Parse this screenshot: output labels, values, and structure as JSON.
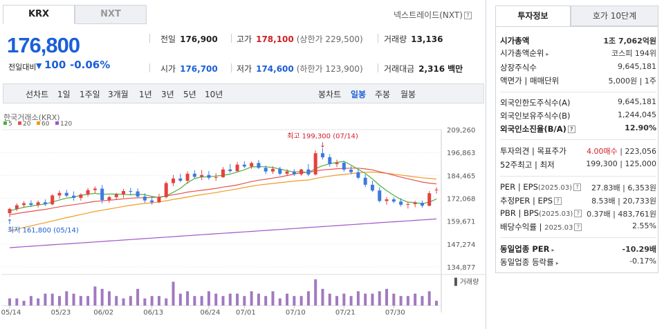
{
  "tabs": {
    "krx": "KRX",
    "nxt": "NXT"
  },
  "nxt_link": "넥스트레이드(NXT)",
  "summary": {
    "price": "176,800",
    "change_label": "전일대비",
    "change": "100",
    "change_pct": "-0.06%"
  },
  "stats": {
    "prev_label": "전일",
    "prev": "176,900",
    "high_label": "고가",
    "high": "178,100",
    "upper_limit": "(상한가 229,500)",
    "volume_label": "거래량",
    "volume": "13,136",
    "open_label": "시가",
    "open": "176,700",
    "low_label": "저가",
    "low": "174,600",
    "lower_limit": "(하한가 123,900)",
    "amount_label": "거래대금",
    "amount": "2,316",
    "amount_unit": "백만"
  },
  "periods": {
    "line_chart": "선차트",
    "d1": "1일",
    "w1": "1주일",
    "m3": "3개월",
    "y1": "1년",
    "y3": "3년",
    "y5": "5년",
    "y10": "10년",
    "candle": "봉차트",
    "daily": "일봉",
    "weekly": "주봉",
    "monthly": "월봉"
  },
  "chart_data": {
    "type": "candlestick",
    "title": "한국거래소(KRX)",
    "legend": [
      "5",
      "20",
      "60",
      "120"
    ],
    "colors": {
      "ma5": "#4caf3d",
      "ma20": "#e4514f",
      "ma60": "#f09a23",
      "ma120": "#9c57c6",
      "up": "#e4423f",
      "down": "#3d79e1",
      "volume": "#a07ac0"
    },
    "y_ticks": [
      "209,260",
      "196,863",
      "184,465",
      "172,068",
      "159,671",
      "147,274",
      "134,877"
    ],
    "ylim": [
      134877,
      209260
    ],
    "x_labels": [
      "05/14",
      "05/23",
      "06/02",
      "06/13",
      "06/24",
      "07/01",
      "07/10",
      "07/21",
      "07/30"
    ],
    "x_label_index": [
      0,
      7,
      13,
      20,
      28,
      33,
      40,
      47,
      54
    ],
    "high_note": "최고 199,300 (07/14)",
    "low_note": "최저 161,800 (05/14)",
    "volume_label": "거래량",
    "candles": [
      [
        164000,
        167000,
        161800,
        166300
      ],
      [
        166300,
        169300,
        165200,
        168300
      ],
      [
        168400,
        170500,
        166900,
        169400
      ],
      [
        169400,
        171000,
        167300,
        168500
      ],
      [
        168500,
        170900,
        167100,
        169900
      ],
      [
        169900,
        171500,
        167800,
        168800
      ],
      [
        168800,
        174300,
        168300,
        173600
      ],
      [
        173600,
        176300,
        171800,
        175000
      ],
      [
        175000,
        176700,
        172700,
        173500
      ],
      [
        173500,
        175800,
        170800,
        172300
      ],
      [
        172300,
        174800,
        170800,
        174100
      ],
      [
        174100,
        177700,
        172900,
        176500
      ],
      [
        176500,
        178500,
        174900,
        177300
      ],
      [
        177300,
        179300,
        169300,
        171100
      ],
      [
        171100,
        173500,
        169600,
        172700
      ],
      [
        172700,
        175000,
        171500,
        174100
      ],
      [
        174100,
        177200,
        172300,
        176000
      ],
      [
        176000,
        177700,
        173800,
        175800
      ],
      [
        175800,
        177400,
        172100,
        173000
      ],
      [
        173000,
        174800,
        169600,
        170900
      ],
      [
        170900,
        173300,
        168600,
        169900
      ],
      [
        169900,
        174500,
        169500,
        172700
      ],
      [
        172700,
        181300,
        172000,
        180300
      ],
      [
        180300,
        184800,
        178700,
        182800
      ],
      [
        182800,
        185300,
        180800,
        181600
      ],
      [
        181600,
        186700,
        179900,
        185400
      ],
      [
        185400,
        187300,
        182800,
        183700
      ],
      [
        183700,
        187400,
        182000,
        184700
      ],
      [
        184700,
        186900,
        182100,
        183200
      ],
      [
        183200,
        185700,
        181600,
        183500
      ],
      [
        183500,
        189000,
        183200,
        187700
      ],
      [
        187700,
        190600,
        185900,
        186800
      ],
      [
        186800,
        191700,
        186300,
        190300
      ],
      [
        190300,
        192100,
        188400,
        189300
      ],
      [
        189300,
        192100,
        188000,
        191200
      ],
      [
        191200,
        192800,
        187900,
        188600
      ],
      [
        188600,
        189800,
        185100,
        186600
      ],
      [
        186600,
        189500,
        185300,
        188000
      ],
      [
        188000,
        189200,
        184500,
        185400
      ],
      [
        185400,
        187800,
        184200,
        186600
      ],
      [
        186600,
        187900,
        184200,
        185100
      ],
      [
        185100,
        188000,
        184300,
        187700
      ],
      [
        187700,
        190600,
        184100,
        185000
      ],
      [
        185000,
        198000,
        184500,
        196500
      ],
      [
        196500,
        199300,
        193100,
        194300
      ],
      [
        194300,
        196000,
        189200,
        190600
      ],
      [
        190600,
        193000,
        188900,
        191300
      ],
      [
        191300,
        192300,
        186500,
        187600
      ],
      [
        187600,
        189500,
        185100,
        186200
      ],
      [
        186200,
        187800,
        182400,
        183200
      ],
      [
        183200,
        185000,
        178100,
        179400
      ],
      [
        179400,
        181600,
        175500,
        176300
      ],
      [
        176300,
        178100,
        169800,
        170600
      ],
      [
        170600,
        172800,
        168600,
        171500
      ],
      [
        171500,
        172700,
        169400,
        170300
      ],
      [
        170300,
        172100,
        167600,
        168600
      ],
      [
        168600,
        170200,
        166500,
        168900
      ],
      [
        168900,
        170700,
        167200,
        169600
      ],
      [
        169600,
        170900,
        167000,
        168100
      ],
      [
        168000,
        176000,
        167800,
        174800
      ],
      [
        176700,
        178100,
        174600,
        176800
      ]
    ],
    "volumes": [
      3,
      3,
      2,
      4,
      3,
      5,
      5,
      4,
      6,
      5,
      4,
      4,
      8,
      7,
      6,
      4,
      3,
      4,
      7,
      3,
      4,
      4,
      3,
      10,
      5,
      6,
      4,
      4,
      6,
      5,
      4,
      5,
      5,
      4,
      6,
      5,
      4,
      6,
      3,
      5,
      4,
      4,
      6,
      11,
      7,
      5,
      4,
      5,
      4,
      6,
      5,
      5,
      6,
      7,
      5,
      4,
      4,
      5,
      4,
      6,
      2
    ]
  },
  "right_tabs": {
    "info": "투자정보",
    "quote": "호가 10단계"
  },
  "info": {
    "mcap_label": "시가총액",
    "mcap": "1조 7,062억원",
    "mcap_rank_label": "시가총액순위",
    "mcap_rank": "코스피 194위",
    "shares_label": "상장주식수",
    "shares": "9,645,181",
    "par_label": "액면가",
    "unit_label": "매매단위",
    "par": "5,000원",
    "unit": "1주",
    "foreign_limit_label": "외국인한도주식수(A)",
    "foreign_limit": "9,645,181",
    "foreign_hold_label": "외국인보유주식수(B)",
    "foreign_hold": "1,244,045",
    "foreign_ratio_label": "외국인소진율(B/A)",
    "foreign_ratio": "12.90%",
    "opinion_label": "투자의견",
    "target_label": "목표주가",
    "opinion": "4.00매수",
    "target": "223,056",
    "w52_high_label": "52주최고",
    "w52_low_label": "최저",
    "w52_high": "199,300",
    "w52_low": "125,000",
    "per_label": "PER",
    "eps_label": "EPS",
    "per_year": "(2025.03)",
    "per": "27.83배",
    "eps": "6,353원",
    "est_per_label": "추정PER",
    "est_eps_label": "EPS",
    "est_per": "8.53배",
    "est_eps": "20,733원",
    "pbr_label": "PBR",
    "bps_label": "BPS",
    "pbr_year": "(2025.03)",
    "pbr": "0.37배",
    "bps": "483,761원",
    "div_label": "배당수익률",
    "div_year": "2025.03",
    "div": "2.55%",
    "ind_per_label": "동일업종 PER",
    "ind_per": "-10.29배",
    "ind_rate_label": "동일업종 등락률",
    "ind_rate": "-0.17%"
  }
}
